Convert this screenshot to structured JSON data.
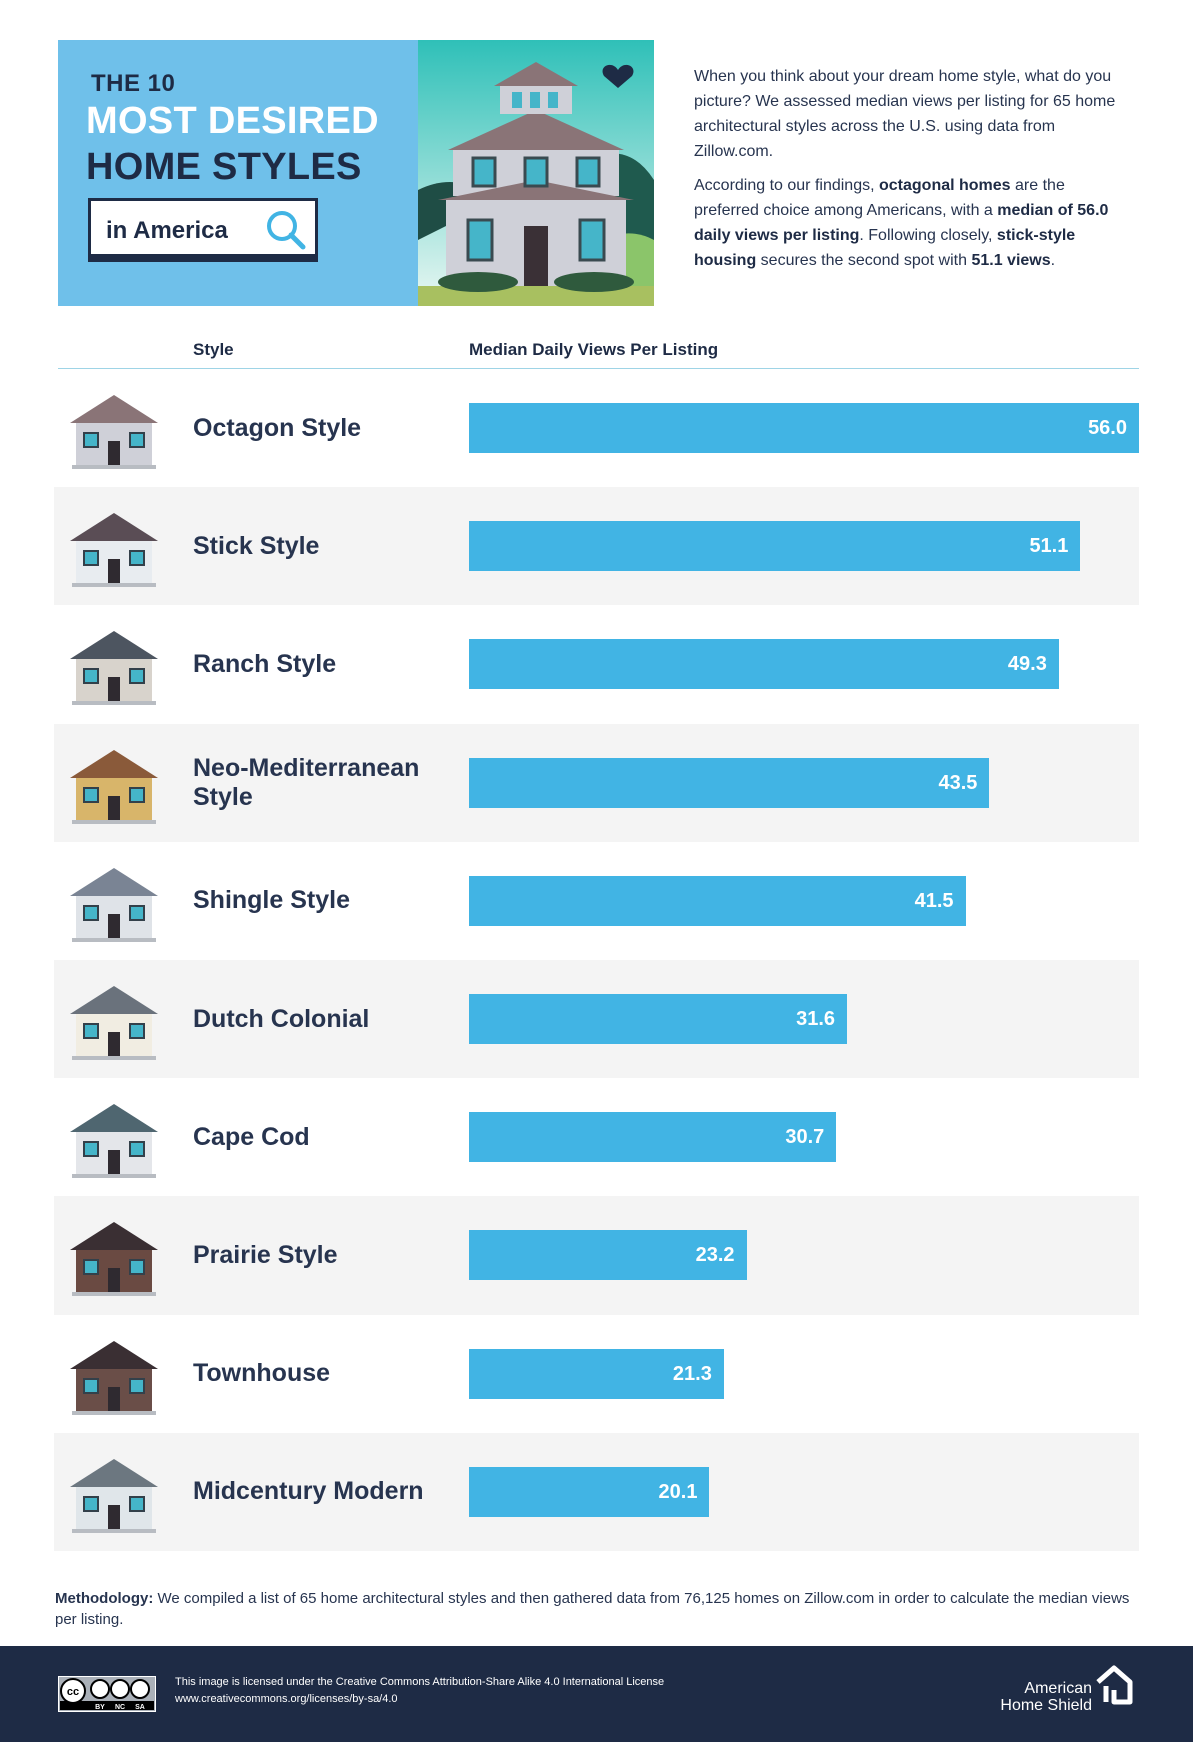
{
  "header": {
    "title_top": "THE 10",
    "title_mid": "MOST DESIRED",
    "title_bot": "HOME STYLES",
    "search_text": "in America"
  },
  "intro": {
    "p1": "When you think about your dream home style, what do you picture? We assessed median views per listing for 65 home architectural styles across the U.S. using data from Zillow.com.",
    "p2_a": "According to our findings, ",
    "p2_b": "octagonal homes",
    "p2_c": " are the preferred choice among Americans, with a ",
    "p2_d": "median of 56.0 daily views per listing",
    "p2_e": ". Following closely, ",
    "p2_f": "stick-style housing",
    "p2_g": " secures the second spot with ",
    "p2_h": "51.1 views",
    "p2_i": "."
  },
  "table": {
    "col_style": "Style",
    "col_views": "Median Daily Views Per Listing"
  },
  "chart_data": {
    "type": "bar",
    "orientation": "horizontal",
    "categories": [
      "Octagon Style",
      "Stick Style",
      "Ranch Style",
      "Neo-Mediterranean Style",
      "Shingle Style",
      "Dutch Colonial",
      "Cape Cod",
      "Prairie Style",
      "Townhouse",
      "Midcentury Modern"
    ],
    "values": [
      56.0,
      51.1,
      49.3,
      43.5,
      41.5,
      31.6,
      30.7,
      23.2,
      21.3,
      20.1
    ],
    "value_labels": [
      "56.0",
      "51.1",
      "49.3",
      "43.5",
      "41.5",
      "31.6",
      "30.7",
      "23.2",
      "21.3",
      "20.1"
    ],
    "title": "",
    "xlabel": "Median Daily Views Per Listing",
    "ylabel": "Style",
    "xlim": [
      0,
      56.0
    ],
    "bar_color": "#41b4e4"
  },
  "methodology": {
    "label": "Methodology:",
    "text": " We compiled a list of 65 home architectural styles and then gathered data from 76,125 homes on Zillow.com in order to calculate the median views per listing."
  },
  "footer": {
    "license_line1": "This image is licensed under the Creative Commons Attribution-Share Alike 4.0 International License",
    "license_line2": "www.creativecommons.org/licenses/by-sa/4.0",
    "brand": "American Home Shield",
    "cc_labels": [
      "BY",
      "NC",
      "SA"
    ]
  },
  "colors": {
    "navy": "#1e2b45",
    "sky": "#6fc0ea",
    "bar": "#41b4e4",
    "row_shade": "#f4f4f4"
  }
}
